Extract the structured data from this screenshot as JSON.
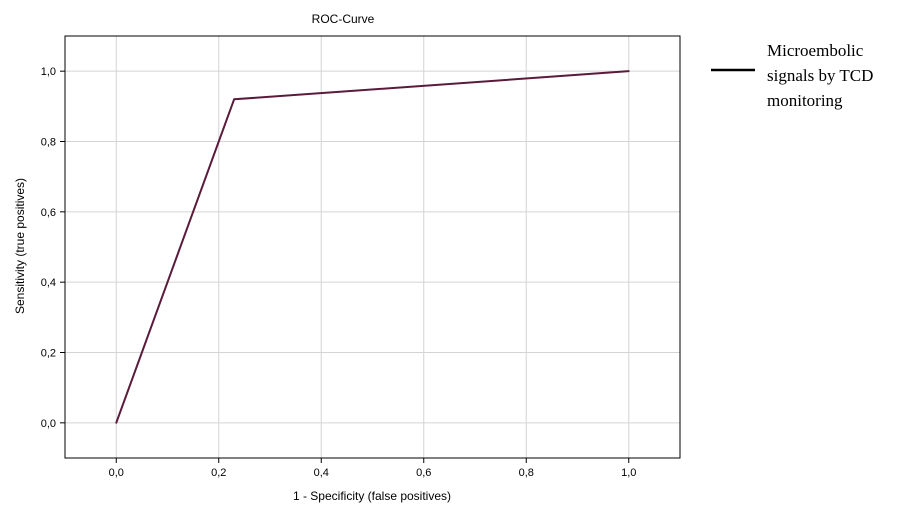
{
  "chart_data": {
    "type": "line",
    "title": "ROC-Curve",
    "xlabel": "1 - Specificity (false positives)",
    "ylabel": "Sensitivity (true positives)",
    "xlim": [
      -0.1,
      1.1
    ],
    "ylim": [
      -0.1,
      1.1
    ],
    "x_ticks": [
      "0,0",
      "0,2",
      "0,4",
      "0,6",
      "0,8",
      "1,0"
    ],
    "y_ticks": [
      "0,0",
      "0,2",
      "0,4",
      "0,6",
      "0,8",
      "1,0"
    ],
    "grid": true,
    "legend_position": "right",
    "series": [
      {
        "name": "Microembolic signals by TCD monitoring",
        "legend_lines": [
          "Microembolic",
          "signals by TCD",
          "monitoring"
        ],
        "color": "#5a1a3a",
        "x": [
          0.0,
          0.23,
          1.0
        ],
        "y": [
          0.0,
          0.92,
          1.0
        ]
      }
    ]
  }
}
